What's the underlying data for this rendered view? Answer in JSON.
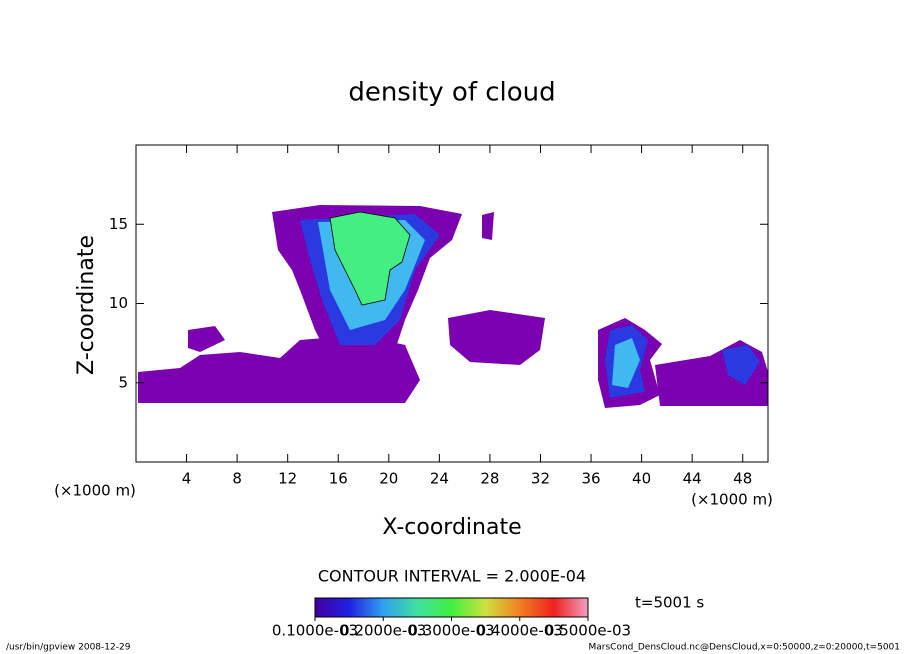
{
  "chart_data": {
    "type": "contour",
    "title": "density of cloud",
    "xlabel": "X-coordinate",
    "ylabel": "Z-coordinate",
    "xunit": "(×1000 m)",
    "yunit": "(×1000 m)",
    "xlim": [
      0,
      50
    ],
    "xticks": [
      4,
      8,
      12,
      16,
      20,
      24,
      28,
      32,
      36,
      40,
      44,
      48
    ],
    "ylim": [
      0,
      20
    ],
    "yticks": [
      5,
      10,
      15
    ],
    "contour_interval": "CONTOUR INTERVAL = 2.000E-04",
    "time_label": "t=5001 s",
    "colorbar": {
      "lim": [
        0.0001,
        0.0005
      ],
      "ticks": [
        {
          "value": 0.0001,
          "label": "0.1000e-03"
        },
        {
          "value": 0.0002,
          "label": "0.2000e-03"
        },
        {
          "value": 0.0003,
          "label": "0.3000e-03"
        },
        {
          "value": 0.0004,
          "label": "0.4000e-03"
        },
        {
          "value": 0.0005,
          "label": "0.5000e-03"
        }
      ],
      "colors": [
        "#4000a0",
        "#2020e0",
        "#30a0f0",
        "#40e0a0",
        "#40f040",
        "#d0e040",
        "#f08020",
        "#f02020",
        "#f0a0c0"
      ]
    },
    "footer_left": "/usr/bin/gpview  2008-12-29",
    "footer_right": "MarsCond_DensCloud.nc@DensCloud,x=0:50000,z=0:20000,t=5001"
  }
}
